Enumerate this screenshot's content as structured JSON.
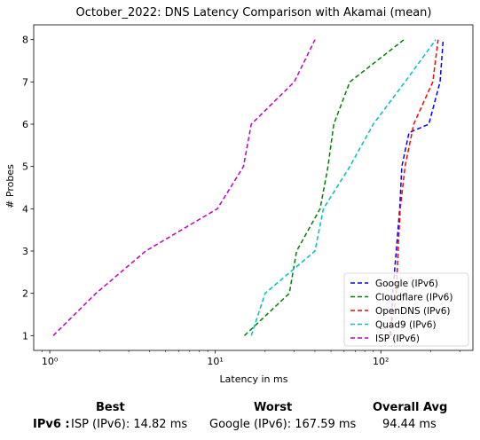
{
  "chart_data": {
    "type": "line",
    "title": "October_2022: DNS Latency Comparison with Akamai (mean)",
    "xlabel": "Latency in ms",
    "ylabel": "# Probes",
    "xscale": "log",
    "xlim": [
      0.8,
      360
    ],
    "ylim": [
      0.65,
      8.35
    ],
    "xticks": [
      1,
      10,
      100
    ],
    "xtick_labels": [
      "10⁰",
      "10¹",
      "10²"
    ],
    "yticks": [
      1,
      2,
      3,
      4,
      5,
      6,
      7,
      8
    ],
    "grid": false,
    "legend_position": "bottom-right",
    "series": [
      {
        "name": "Google (IPv6)",
        "color": "#0000ff",
        "x": [
          115,
          118,
          124,
          130,
          134,
          148,
          195,
          228,
          238
        ],
        "y": [
          1,
          2,
          3,
          4,
          5,
          5.8,
          6,
          7,
          8
        ]
      },
      {
        "name": "Cloudflare (IPv6)",
        "color": "#008000",
        "x": [
          15,
          28,
          31,
          43,
          48,
          52,
          65,
          138
        ],
        "y": [
          1,
          2,
          3,
          4,
          5,
          6,
          7,
          8
        ]
      },
      {
        "name": "OpenDNS (IPv6)",
        "color": "#ff0000",
        "x": [
          113,
          121,
          124,
          127,
          131,
          140,
          158,
          206,
          222
        ],
        "y": [
          1,
          1.7,
          2,
          3,
          4,
          5,
          6,
          7,
          8
        ]
      },
      {
        "name": "Quad9 (IPv6)",
        "color": "#00bfbf",
        "x": [
          16.5,
          20,
          40,
          45,
          65,
          90,
          140,
          215
        ],
        "y": [
          1,
          2,
          3,
          4,
          5,
          6,
          7,
          8
        ]
      },
      {
        "name": "ISP (IPv6)",
        "color": "#bf00bf",
        "x": [
          1.05,
          1.9,
          3.8,
          10.3,
          14.8,
          16.5,
          30,
          40
        ],
        "y": [
          1,
          2,
          3,
          4,
          5,
          6,
          7,
          8
        ]
      }
    ]
  },
  "summary": {
    "best_header": "Best",
    "worst_header": "Worst",
    "avg_header": "Overall Avg",
    "row_label": "IPv6 :",
    "best_value": "ISP (IPv6): 14.82 ms",
    "worst_value": "Google (IPv6): 167.59 ms",
    "avg_value": "94.44 ms"
  }
}
